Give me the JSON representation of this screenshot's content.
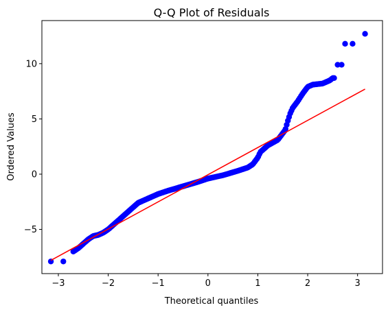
{
  "chart_data": {
    "type": "scatter",
    "title": "Q-Q Plot of Residuals",
    "xlabel": "Theoretical quantiles",
    "ylabel": "Ordered Values",
    "xlim": [
      -3.33,
      3.5
    ],
    "ylim": [
      -9.0,
      13.9
    ],
    "xticks": [
      -3,
      -2,
      -1,
      0,
      1,
      2,
      3
    ],
    "yticks": [
      -5,
      0,
      5,
      10
    ],
    "xtick_labels": [
      "−3",
      "−2",
      "−1",
      "0",
      "1",
      "2",
      "3"
    ],
    "ytick_labels": [
      "−5",
      "0",
      "5",
      "10"
    ],
    "grid": false,
    "marker_color": "#0000ff",
    "line_color": "#ff0000",
    "reference_line": {
      "x": [
        -3.15,
        3.15
      ],
      "y": [
        -7.8,
        7.7
      ]
    },
    "points_x_range": [
      -3.15,
      3.15
    ],
    "quantile_profile": [
      [
        -3.15,
        -7.9
      ],
      [
        -2.9,
        -7.9
      ],
      [
        -2.7,
        -7.0
      ],
      [
        -2.6,
        -6.7
      ],
      [
        -2.5,
        -6.3
      ],
      [
        -2.4,
        -5.9
      ],
      [
        -2.3,
        -5.6
      ],
      [
        -2.2,
        -5.5
      ],
      [
        -2.1,
        -5.3
      ],
      [
        -2.0,
        -5.0
      ],
      [
        -1.9,
        -4.6
      ],
      [
        -1.8,
        -4.2
      ],
      [
        -1.7,
        -3.8
      ],
      [
        -1.6,
        -3.4
      ],
      [
        -1.5,
        -3.0
      ],
      [
        -1.4,
        -2.6
      ],
      [
        -1.2,
        -2.2
      ],
      [
        -1.0,
        -1.8
      ],
      [
        -0.8,
        -1.5
      ],
      [
        -0.5,
        -1.1
      ],
      [
        -0.2,
        -0.7
      ],
      [
        0.0,
        -0.4
      ],
      [
        0.3,
        -0.1
      ],
      [
        0.6,
        0.3
      ],
      [
        0.8,
        0.6
      ],
      [
        0.9,
        0.9
      ],
      [
        1.0,
        1.5
      ],
      [
        1.05,
        2.0
      ],
      [
        1.2,
        2.6
      ],
      [
        1.4,
        3.1
      ],
      [
        1.55,
        4.0
      ],
      [
        1.6,
        4.8
      ],
      [
        1.65,
        5.5
      ],
      [
        1.7,
        6.0
      ],
      [
        1.8,
        6.6
      ],
      [
        1.9,
        7.3
      ],
      [
        2.0,
        7.9
      ],
      [
        2.1,
        8.1
      ],
      [
        2.3,
        8.2
      ],
      [
        2.45,
        8.5
      ],
      [
        2.5,
        8.7
      ],
      [
        2.53,
        8.7
      ]
    ],
    "tail_points": [
      [
        2.6,
        9.9
      ],
      [
        2.68,
        9.9
      ],
      [
        2.75,
        11.8
      ],
      [
        2.9,
        11.8
      ],
      [
        3.15,
        12.7
      ]
    ]
  }
}
